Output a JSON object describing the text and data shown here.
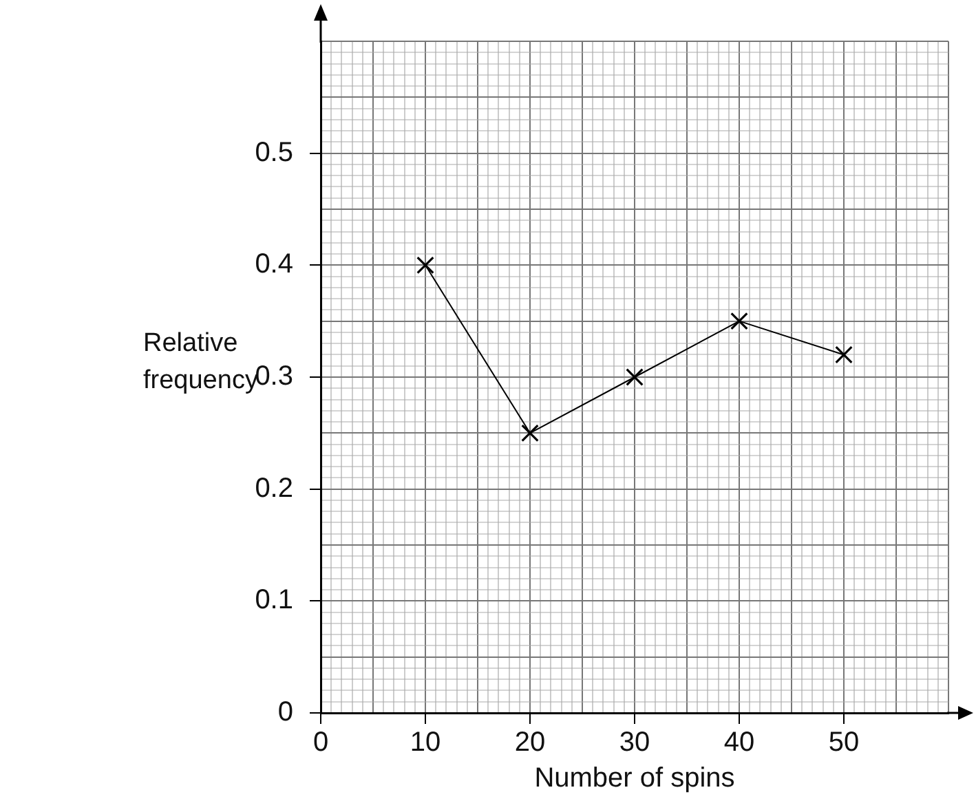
{
  "chart_data": {
    "type": "line",
    "xlabel": "Number of spins",
    "ylabel": "Relative frequency",
    "x": [
      10,
      20,
      30,
      40,
      50
    ],
    "series": [
      {
        "color": "#000000",
        "values": [
          0.4,
          0.25,
          0.3,
          0.35,
          0.32
        ]
      }
    ],
    "xlim": [
      0,
      60
    ],
    "xticks": [
      0,
      10,
      20,
      30,
      40,
      50
    ],
    "ylim": [
      0,
      0.6
    ],
    "yticks": [
      0,
      0.1,
      0.2,
      0.3,
      0.4,
      0.5
    ],
    "grid": true,
    "marker": "cross",
    "line_style": "solid",
    "legend": false
  }
}
